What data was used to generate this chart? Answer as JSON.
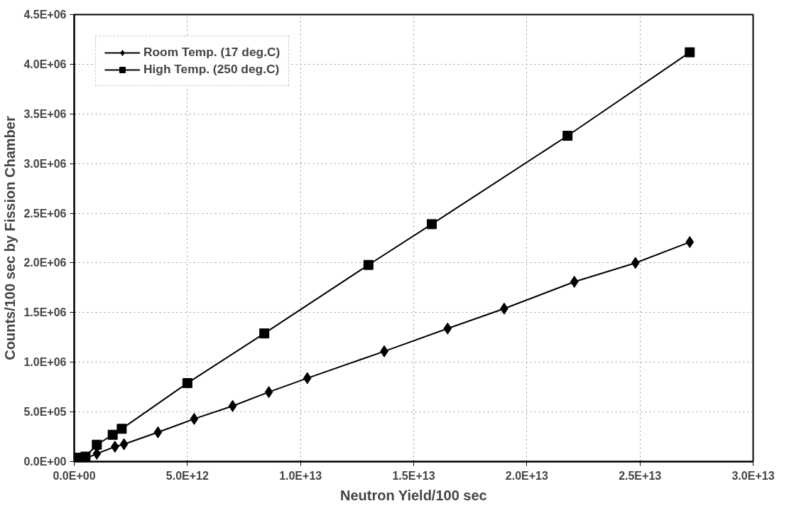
{
  "chart_data": {
    "type": "line",
    "xlabel": "Neutron Yield/100 sec",
    "ylabel": "Counts/100 sec by Fission Chamber",
    "xlim": [
      0,
      30000000000000.0
    ],
    "ylim": [
      0,
      4500000.0
    ],
    "xticks": [
      {
        "value": 0,
        "label": "0.0E+00"
      },
      {
        "value": 5000000000000.0,
        "label": "5.0E+12"
      },
      {
        "value": 10000000000000.0,
        "label": "1.0E+13"
      },
      {
        "value": 15000000000000.0,
        "label": "1.5E+13"
      },
      {
        "value": 20000000000000.0,
        "label": "2.0E+13"
      },
      {
        "value": 25000000000000.0,
        "label": "2.5E+13"
      },
      {
        "value": 30000000000000.0,
        "label": "3.0E+13"
      }
    ],
    "yticks": [
      {
        "value": 0,
        "label": "0.0E+00"
      },
      {
        "value": 500000.0,
        "label": "5.0E+05"
      },
      {
        "value": 1000000.0,
        "label": "1.0E+06"
      },
      {
        "value": 1500000.0,
        "label": "1.5E+06"
      },
      {
        "value": 2000000.0,
        "label": "2.0E+06"
      },
      {
        "value": 2500000.0,
        "label": "2.5E+06"
      },
      {
        "value": 3000000.0,
        "label": "3.0E+06"
      },
      {
        "value": 3500000.0,
        "label": "3.5E+06"
      },
      {
        "value": 4000000.0,
        "label": "4.0E+06"
      },
      {
        "value": 4500000.0,
        "label": "4.5E+06"
      }
    ],
    "grid": true,
    "legend": "top left",
    "line_style": "solid",
    "series": [
      {
        "name": "Room Temp. (17 deg.C)",
        "color": "#000000",
        "marker": "diamond",
        "x": [
          100000000000.0,
          400000000000.0,
          1000000000000.0,
          1800000000000.0,
          2200000000000.0,
          3700000000000.0,
          5300000000000.0,
          7000000000000.0,
          8600000000000.0,
          10300000000000.0,
          13700000000000.0,
          16500000000000.0,
          19000000000000.0,
          22100000000000.0,
          24800000000000.0,
          27200000000000.0
        ],
        "values": [
          10000.0,
          20000.0,
          80000.0,
          150000.0,
          175000.0,
          295000.0,
          430000.0,
          560000.0,
          700000.0,
          840000.0,
          1110000.0,
          1340000.0,
          1540000.0,
          1810000.0,
          2000000.0,
          2210000.0
        ]
      },
      {
        "name": "High Temp. (250 deg.C)",
        "color": "#000000",
        "marker": "square",
        "x": [
          100000000000.0,
          500000000000.0,
          1000000000000.0,
          1700000000000.0,
          2100000000000.0,
          5000000000000.0,
          8400000000000.0,
          13000000000000.0,
          15800000000000.0,
          21800000000000.0,
          27200000000000.0
        ],
        "values": [
          40000.0,
          50000.0,
          170000.0,
          270000.0,
          330000.0,
          790000.0,
          1290000.0,
          1980000.0,
          2390000.0,
          3280000.0,
          4120000.0
        ]
      }
    ]
  }
}
